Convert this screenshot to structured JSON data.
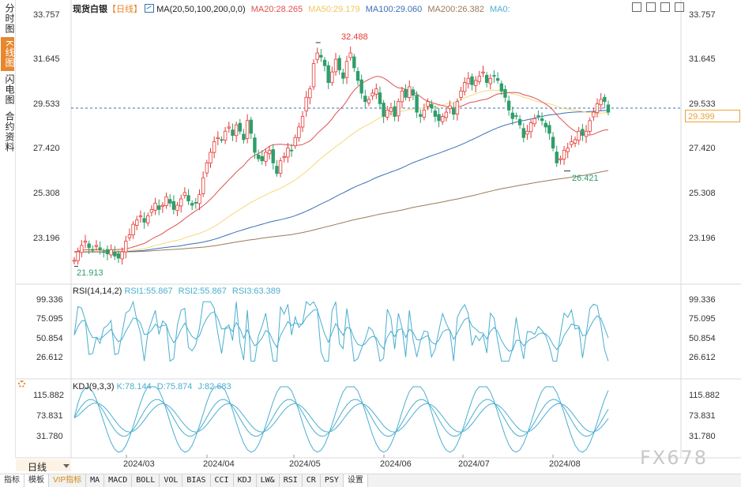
{
  "header": {
    "instrument": "现货白银",
    "period_tag": "【日线】",
    "ma_params": "MA(20,50,100,200,0,0)",
    "ma20": "MA20:28.265",
    "ma50": "MA50:29.179",
    "ma100": "MA100:29.060",
    "ma200": "MA200:26.382",
    "ma0": "MA0:"
  },
  "left_tabs": [
    "分时图",
    "K线图",
    "闪电图",
    "合约资料"
  ],
  "main_axis": [
    "33.757",
    "31.645",
    "29.533",
    "27.420",
    "25.308",
    "23.196"
  ],
  "current_price": "29.399",
  "annotations": {
    "high": "32.488",
    "low": "21.913",
    "swing_low": "26.421"
  },
  "rsi": {
    "label": "RSI(14,14,2)",
    "rsi1": "RSI1:55.867",
    "rsi2": "RSI2:55.867",
    "rsi3": "RSI3:63.389",
    "axis": [
      "99.336",
      "75.095",
      "50.854",
      "26.612"
    ]
  },
  "kdj": {
    "label": "KDJ(9,3,3)",
    "k": "K:78.144",
    "d": "D:75.874",
    "j": "J:82.683",
    "axis": [
      "115.882",
      "73.831",
      "31.780"
    ]
  },
  "x_axis": [
    "2024/03",
    "2024/04",
    "2024/05",
    "2024/06",
    "2024/07",
    "2024/08"
  ],
  "period_button": "日线",
  "bottom_tabs": [
    "指标",
    "模板",
    "VIP指标",
    "MA",
    "MACD",
    "BOLL",
    "VOL",
    "BIAS",
    "CCI",
    "KDJ",
    "LW&",
    "RSI",
    "CR",
    "PSY",
    "设置"
  ],
  "watermark": "FX678",
  "colors": {
    "up": "#e53935",
    "down": "#2e9e6b",
    "ma20": "#e05050",
    "ma50": "#f5d97a",
    "ma100": "#3a6fb5",
    "ma200": "#9b7a5a",
    "rsi": "#4aaed0",
    "accent": "#e8872d"
  },
  "chart_data": {
    "type": "candlestick",
    "x_range": [
      "2024-02-13",
      "2024-08-27"
    ],
    "ylim": [
      21.4,
      33.9
    ],
    "closes": [
      22.2,
      22.6,
      22.9,
      23.1,
      22.8,
      22.7,
      22.9,
      22.7,
      22.6,
      22.5,
      22.7,
      22.4,
      22.3,
      22.6,
      23.1,
      23.4,
      23.9,
      24.1,
      24.3,
      24.0,
      24.3,
      24.6,
      24.9,
      24.6,
      24.8,
      25.2,
      24.9,
      24.6,
      24.8,
      25.1,
      25.4,
      25.0,
      24.8,
      24.9,
      25.3,
      26.1,
      26.8,
      27.3,
      27.8,
      28.0,
      27.9,
      28.3,
      28.5,
      28.1,
      28.6,
      28.3,
      27.9,
      28.8,
      28.2,
      27.3,
      27.0,
      26.9,
      27.3,
      27.4,
      26.8,
      26.3,
      26.9,
      27.1,
      27.5,
      27.4,
      28.0,
      28.5,
      29.0,
      29.9,
      30.3,
      31.5,
      32.0,
      31.8,
      31.4,
      30.6,
      31.1,
      31.7,
      31.2,
      30.8,
      31.6,
      32.0,
      31.3,
      30.7,
      30.1,
      29.7,
      29.8,
      30.1,
      30.3,
      29.6,
      29.0,
      29.3,
      29.4,
      29.0,
      29.7,
      30.2,
      29.9,
      30.4,
      30.0,
      29.2,
      29.0,
      29.3,
      29.7,
      29.4,
      29.0,
      28.8,
      29.0,
      29.2,
      29.5,
      29.1,
      29.7,
      30.2,
      30.6,
      30.8,
      30.5,
      30.7,
      30.9,
      31.1,
      30.6,
      30.8,
      30.9,
      30.7,
      30.2,
      29.9,
      29.3,
      28.9,
      29.0,
      28.6,
      28.0,
      28.3,
      28.7,
      28.9,
      29.0,
      28.8,
      28.5,
      28.2,
      27.5,
      26.8,
      27.0,
      27.4,
      27.5,
      27.8,
      27.9,
      28.3,
      28.1,
      28.3,
      28.8,
      29.2,
      29.6,
      29.8,
      29.7,
      29.2
    ],
    "high": 32.488,
    "low": 21.913,
    "swing_low": 26.421
  }
}
